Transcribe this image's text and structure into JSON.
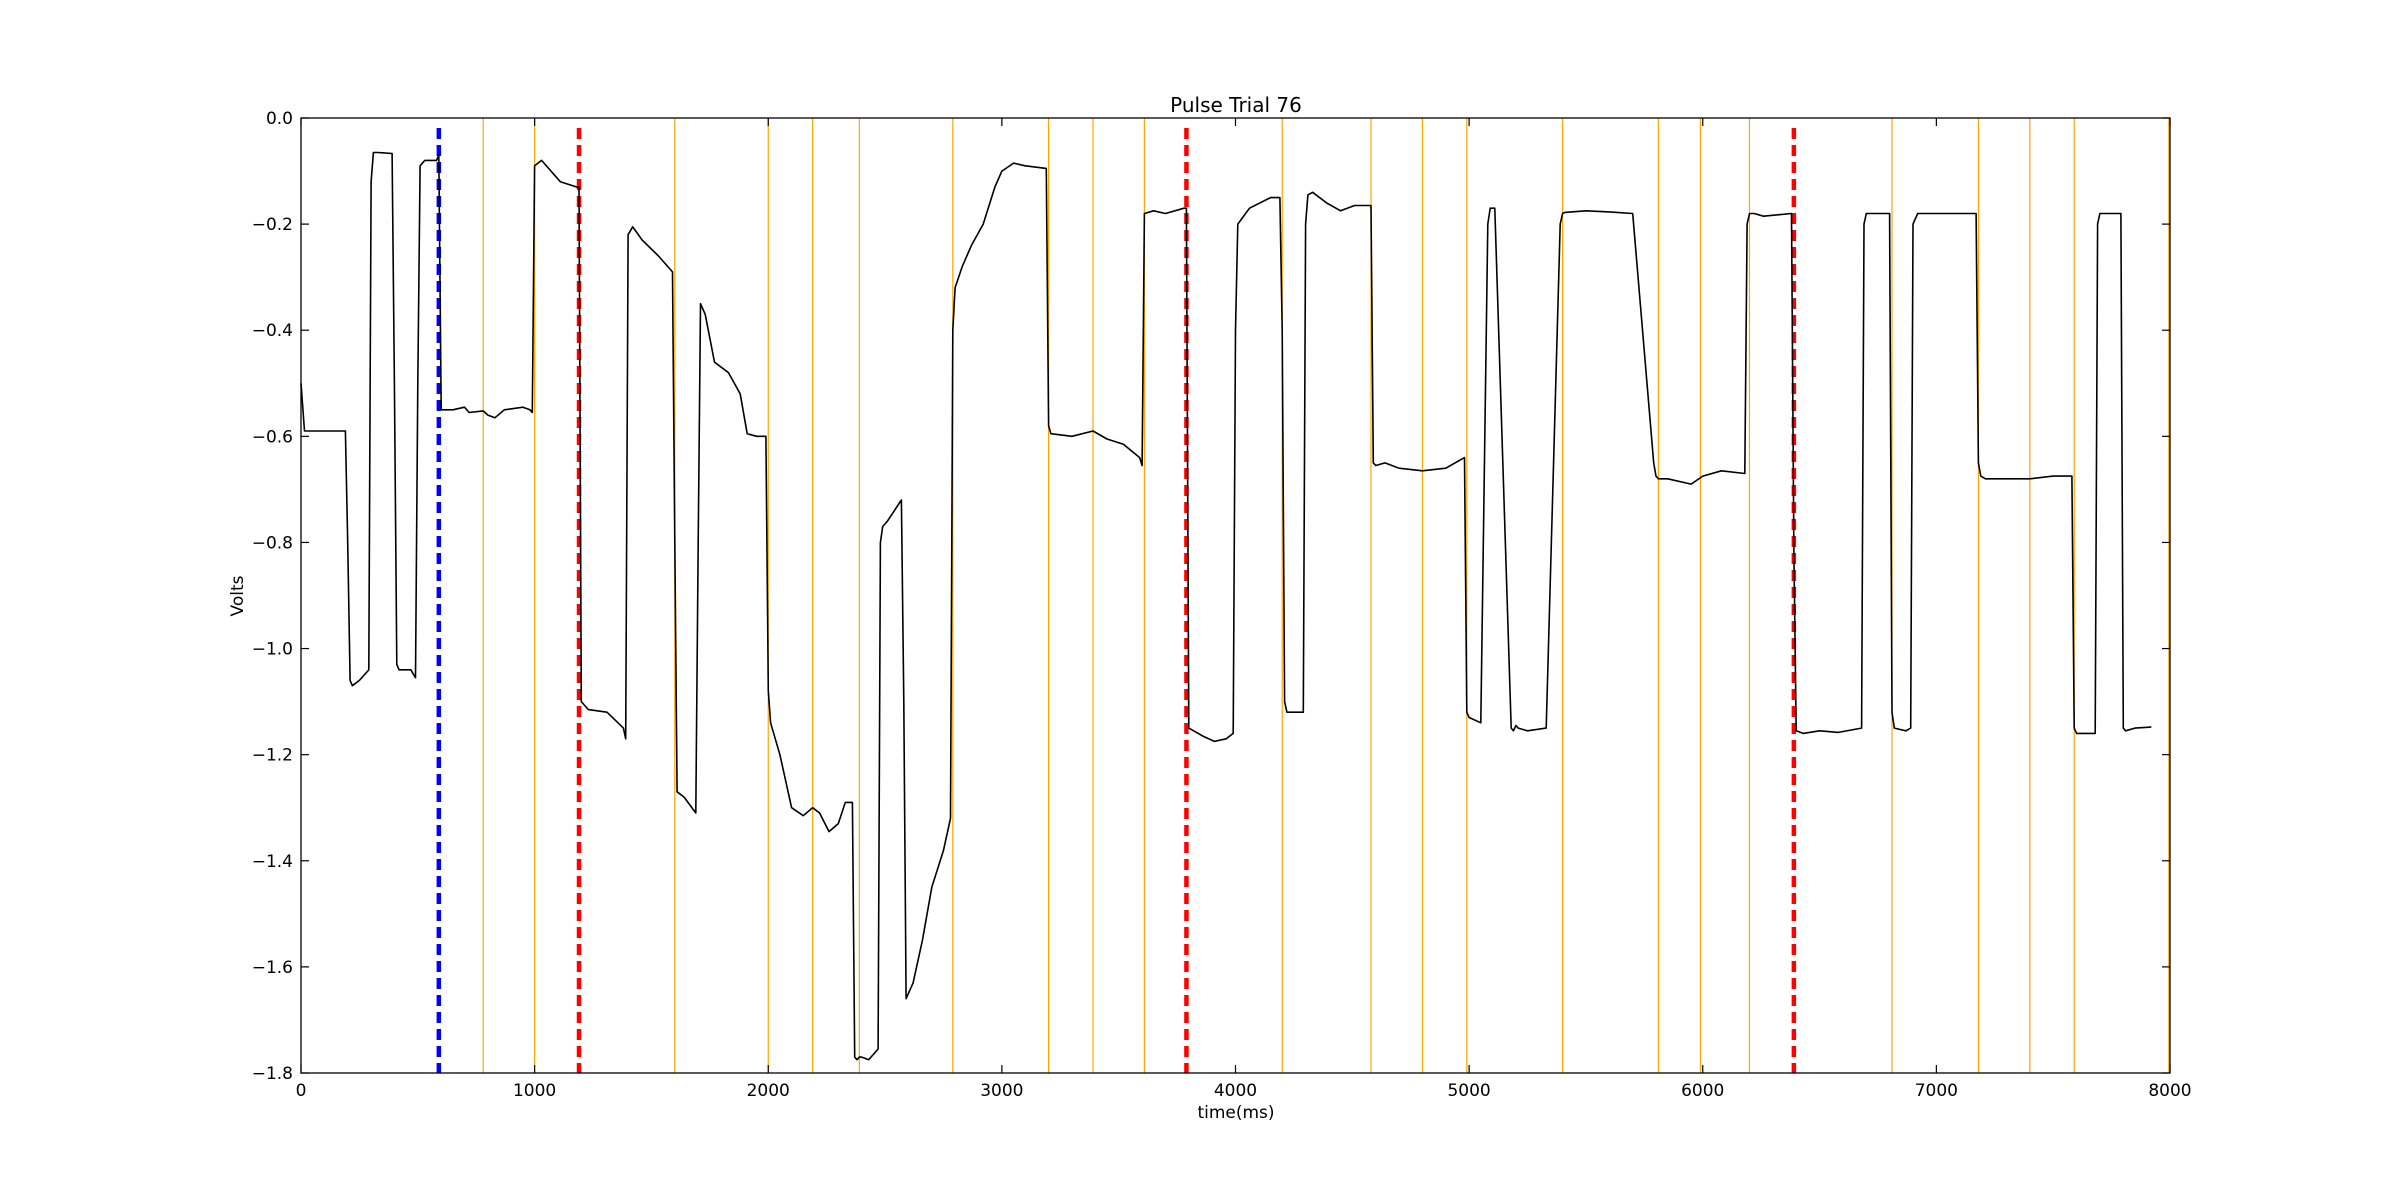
{
  "chart_data": {
    "type": "line",
    "title": "Pulse Trial 76",
    "xlabel": "time(ms)",
    "ylabel": "Volts",
    "xlim": [
      0,
      8000
    ],
    "ylim": [
      -1.8,
      0.0
    ],
    "x_ticks": [
      0,
      1000,
      2000,
      3000,
      4000,
      5000,
      6000,
      7000,
      8000
    ],
    "x_tick_labels": [
      "0",
      "1000",
      "2000",
      "3000",
      "4000",
      "5000",
      "6000",
      "7000",
      "8000"
    ],
    "y_ticks": [
      0.0,
      -0.2,
      -0.4,
      -0.6,
      -0.8,
      -1.0,
      -1.2,
      -1.4,
      -1.6,
      -1.8
    ],
    "y_tick_labels": [
      "0.0",
      "−0.2",
      "−0.4",
      "−0.6",
      "−0.8",
      "−1.0",
      "−1.2",
      "−1.4",
      "−1.6",
      "−1.8"
    ],
    "grid": false,
    "colors": {
      "trace": "#000000",
      "event_line": "#ffa500",
      "blue_marker": "#0000ff",
      "red_marker": "#ff0000"
    },
    "event_lines_x": [
      780,
      1000,
      1600,
      2000,
      2190,
      2390,
      2790,
      3200,
      3390,
      3610,
      4200,
      4580,
      4800,
      4990,
      5400,
      5810,
      5990,
      6200,
      6810,
      7180,
      7400,
      7590,
      7995
    ],
    "marker_lines": [
      {
        "x": 590,
        "color": "blue"
      },
      {
        "x": 1190,
        "color": "red"
      },
      {
        "x": 3790,
        "color": "red"
      },
      {
        "x": 6390,
        "color": "red"
      }
    ],
    "series": [
      {
        "x": [
          0,
          15,
          100,
          190,
          200,
          210,
          220,
          250,
          270,
          290,
          300,
          310,
          330,
          390,
          400,
          410,
          420,
          470,
          490,
          500,
          510,
          530,
          580,
          590,
          600,
          650,
          700,
          720,
          780,
          800,
          830,
          870,
          950,
          980,
          990,
          1000,
          1030,
          1110,
          1180,
          1190,
          1200,
          1230,
          1310,
          1380,
          1390,
          1400,
          1420,
          1460,
          1530,
          1590,
          1600,
          1610,
          1640,
          1690,
          1700,
          1710,
          1730,
          1770,
          1830,
          1880,
          1910,
          1950,
          1990,
          2000,
          2010,
          2050,
          2100,
          2150,
          2190,
          2220,
          2260,
          2300,
          2330,
          2360,
          2370,
          2380,
          2390,
          2400,
          2430,
          2470,
          2480,
          2490,
          2510,
          2570,
          2580,
          2590,
          2620,
          2660,
          2700,
          2750,
          2780,
          2790,
          2800,
          2830,
          2870,
          2920,
          2970,
          3000,
          3050,
          3100,
          3190,
          3200,
          3210,
          3300,
          3390,
          3450,
          3520,
          3590,
          3600,
          3610,
          3650,
          3700,
          3780,
          3790,
          3800,
          3860,
          3910,
          3960,
          3990,
          4000,
          4010,
          4060,
          4150,
          4190,
          4200,
          4210,
          4220,
          4290,
          4300,
          4310,
          4330,
          4390,
          4450,
          4510,
          4580,
          4590,
          4600,
          4640,
          4700,
          4800,
          4900,
          4980,
          4990,
          5000,
          5050,
          5080,
          5090,
          5100,
          5110,
          5180,
          5190,
          5200,
          5210,
          5250,
          5330,
          5390,
          5400,
          5410,
          5500,
          5600,
          5700,
          5790,
          5800,
          5810,
          5850,
          5950,
          6000,
          6080,
          6180,
          6190,
          6200,
          6220,
          6260,
          6380,
          6390,
          6400,
          6430,
          6500,
          6580,
          6680,
          6690,
          6700,
          6720,
          6790,
          6800,
          6810,
          6820,
          6870,
          6890,
          6900,
          6920,
          6990,
          7100,
          7170,
          7180,
          7190,
          7210,
          7300,
          7400,
          7500,
          7580,
          7590,
          7600,
          7620,
          7680,
          7690,
          7700,
          7720,
          7790,
          7800,
          7810,
          7850,
          7920
        ],
        "y": [
          -0.5,
          -0.59,
          -0.59,
          -0.59,
          -0.8,
          -1.06,
          -1.07,
          -1.06,
          -1.05,
          -1.04,
          -0.12,
          -0.065,
          -0.065,
          -0.067,
          -0.5,
          -1.03,
          -1.04,
          -1.04,
          -1.055,
          -0.5,
          -0.09,
          -0.08,
          -0.08,
          -0.07,
          -0.55,
          -0.55,
          -0.545,
          -0.555,
          -0.552,
          -0.56,
          -0.565,
          -0.55,
          -0.545,
          -0.55,
          -0.555,
          -0.09,
          -0.08,
          -0.12,
          -0.13,
          -0.13,
          -1.1,
          -1.115,
          -1.12,
          -1.15,
          -1.17,
          -0.22,
          -0.205,
          -0.23,
          -0.26,
          -0.29,
          -0.8,
          -1.27,
          -1.28,
          -1.31,
          -0.8,
          -0.35,
          -0.37,
          -0.46,
          -0.48,
          -0.52,
          -0.595,
          -0.6,
          -0.6,
          -1.08,
          -1.14,
          -1.2,
          -1.3,
          -1.315,
          -1.3,
          -1.31,
          -1.345,
          -1.33,
          -1.29,
          -1.29,
          -1.77,
          -1.775,
          -1.77,
          -1.77,
          -1.775,
          -1.755,
          -0.8,
          -0.77,
          -0.76,
          -0.72,
          -1.1,
          -1.66,
          -1.63,
          -1.55,
          -1.45,
          -1.38,
          -1.32,
          -0.4,
          -0.32,
          -0.28,
          -0.24,
          -0.2,
          -0.13,
          -0.1,
          -0.085,
          -0.09,
          -0.095,
          -0.58,
          -0.595,
          -0.6,
          -0.59,
          -0.605,
          -0.615,
          -0.64,
          -0.655,
          -0.18,
          -0.175,
          -0.18,
          -0.17,
          -0.17,
          -1.15,
          -1.165,
          -1.175,
          -1.17,
          -1.16,
          -0.4,
          -0.2,
          -0.17,
          -0.15,
          -0.15,
          -0.4,
          -1.1,
          -1.12,
          -1.12,
          -0.2,
          -0.145,
          -0.14,
          -0.16,
          -0.175,
          -0.165,
          -0.165,
          -0.65,
          -0.655,
          -0.65,
          -0.66,
          -0.665,
          -0.66,
          -0.64,
          -1.12,
          -1.13,
          -1.14,
          -0.2,
          -0.17,
          -0.17,
          -0.17,
          -1.15,
          -1.155,
          -1.145,
          -1.15,
          -1.155,
          -1.15,
          -0.2,
          -0.18,
          -0.178,
          -0.175,
          -0.177,
          -0.18,
          -0.65,
          -0.675,
          -0.68,
          -0.68,
          -0.69,
          -0.675,
          -0.665,
          -0.67,
          -0.2,
          -0.18,
          -0.18,
          -0.185,
          -0.18,
          -0.82,
          -1.155,
          -1.16,
          -1.155,
          -1.158,
          -1.15,
          -0.2,
          -0.18,
          -0.18,
          -0.18,
          -0.18,
          -1.12,
          -1.15,
          -1.155,
          -1.15,
          -0.2,
          -0.18,
          -0.18,
          -0.18,
          -0.18,
          -0.65,
          -0.675,
          -0.68,
          -0.68,
          -0.68,
          -0.675,
          -0.675,
          -1.15,
          -1.16,
          -1.16,
          -1.16,
          -0.2,
          -0.18,
          -0.18,
          -0.18,
          -1.15,
          -1.155,
          -1.15,
          -1.148
        ]
      }
    ]
  }
}
